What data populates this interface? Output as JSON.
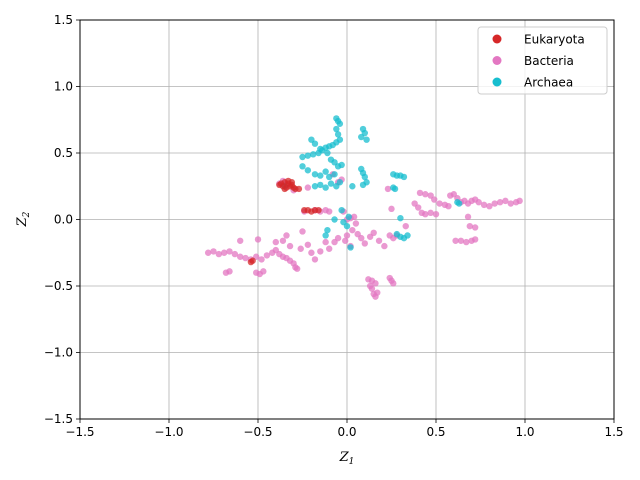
{
  "chart_data": {
    "type": "scatter",
    "title": "",
    "xlabel": "Z",
    "xlabel_sub": "1",
    "ylabel": "Z",
    "ylabel_sub": "2",
    "xlim": [
      -1.5,
      1.5
    ],
    "ylim": [
      -1.5,
      1.5
    ],
    "xticks": [
      -1.5,
      -1.0,
      -0.5,
      0.0,
      0.5,
      1.0,
      1.5
    ],
    "yticks": [
      -1.5,
      -1.0,
      -0.5,
      0.0,
      0.5,
      1.0,
      1.5
    ],
    "xtick_labels": [
      "−1.5",
      "−1.0",
      "−0.5",
      "0.0",
      "0.5",
      "1.0",
      "1.5"
    ],
    "ytick_labels": [
      "−1.5",
      "−1.0",
      "−0.5",
      "0.0",
      "0.5",
      "1.0",
      "1.5"
    ],
    "grid": true,
    "legend_position": "top-right",
    "series": [
      {
        "name": "Eukaryota",
        "color": "#d62728",
        "points": [
          [
            -0.37,
            0.27
          ],
          [
            -0.35,
            0.28
          ],
          [
            -0.33,
            0.27
          ],
          [
            -0.31,
            0.26
          ],
          [
            -0.36,
            0.25
          ],
          [
            -0.34,
            0.24
          ],
          [
            -0.32,
            0.25
          ],
          [
            -0.3,
            0.24
          ],
          [
            -0.38,
            0.26
          ],
          [
            -0.33,
            0.29
          ],
          [
            -0.29,
            0.23
          ],
          [
            -0.35,
            0.23
          ],
          [
            -0.31,
            0.28
          ],
          [
            -0.27,
            0.23
          ],
          [
            -0.24,
            0.07
          ],
          [
            -0.22,
            0.07
          ],
          [
            -0.2,
            0.06
          ],
          [
            -0.18,
            0.07
          ],
          [
            -0.16,
            0.07
          ],
          [
            -0.54,
            -0.32
          ],
          [
            -0.53,
            -0.31
          ]
        ]
      },
      {
        "name": "Bacteria",
        "color": "#e377c2",
        "points": [
          [
            -0.78,
            -0.25
          ],
          [
            -0.75,
            -0.24
          ],
          [
            -0.72,
            -0.26
          ],
          [
            -0.69,
            -0.25
          ],
          [
            -0.66,
            -0.24
          ],
          [
            -0.63,
            -0.26
          ],
          [
            -0.6,
            -0.28
          ],
          [
            -0.57,
            -0.29
          ],
          [
            -0.54,
            -0.3
          ],
          [
            -0.51,
            -0.28
          ],
          [
            -0.68,
            -0.4
          ],
          [
            -0.66,
            -0.39
          ],
          [
            -0.6,
            -0.16
          ],
          [
            -0.51,
            -0.4
          ],
          [
            -0.49,
            -0.41
          ],
          [
            -0.47,
            -0.39
          ],
          [
            -0.48,
            -0.3
          ],
          [
            -0.45,
            -0.27
          ],
          [
            -0.42,
            -0.25
          ],
          [
            -0.4,
            -0.23
          ],
          [
            -0.38,
            -0.26
          ],
          [
            -0.36,
            -0.28
          ],
          [
            -0.34,
            -0.29
          ],
          [
            -0.32,
            -0.31
          ],
          [
            -0.3,
            -0.33
          ],
          [
            -0.29,
            -0.36
          ],
          [
            -0.28,
            -0.37
          ],
          [
            -0.4,
            -0.17
          ],
          [
            -0.36,
            -0.16
          ],
          [
            -0.34,
            -0.12
          ],
          [
            -0.32,
            -0.2
          ],
          [
            -0.26,
            -0.22
          ],
          [
            -0.22,
            -0.19
          ],
          [
            -0.2,
            -0.25
          ],
          [
            -0.18,
            -0.3
          ],
          [
            -0.15,
            -0.24
          ],
          [
            -0.12,
            -0.17
          ],
          [
            -0.1,
            -0.22
          ],
          [
            -0.07,
            -0.17
          ],
          [
            -0.05,
            -0.14
          ],
          [
            -0.5,
            -0.15
          ],
          [
            -0.25,
            -0.09
          ],
          [
            -0.38,
            0.27
          ],
          [
            -0.36,
            0.29
          ],
          [
            -0.34,
            0.26
          ],
          [
            -0.3,
            0.22
          ],
          [
            -0.22,
            0.24
          ],
          [
            -0.18,
            0.07
          ],
          [
            -0.15,
            0.06
          ],
          [
            -0.12,
            0.07
          ],
          [
            -0.1,
            0.06
          ],
          [
            -0.24,
            0.06
          ],
          [
            -0.02,
            0.06
          ],
          [
            -0.08,
            0.34
          ],
          [
            -0.05,
            0.28
          ],
          [
            -0.03,
            0.3
          ],
          [
            0.0,
            0.0
          ],
          [
            0.02,
            0.01
          ],
          [
            0.04,
            0.02
          ],
          [
            0.05,
            -0.03
          ],
          [
            0.03,
            -0.08
          ],
          [
            0.06,
            -0.11
          ],
          [
            0.08,
            -0.14
          ],
          [
            0.0,
            -0.12
          ],
          [
            -0.01,
            -0.16
          ],
          [
            0.02,
            -0.2
          ],
          [
            0.1,
            -0.18
          ],
          [
            0.13,
            -0.13
          ],
          [
            0.15,
            -0.1
          ],
          [
            0.18,
            -0.16
          ],
          [
            0.21,
            -0.2
          ],
          [
            0.12,
            -0.45
          ],
          [
            0.14,
            -0.46
          ],
          [
            0.16,
            -0.48
          ],
          [
            0.14,
            -0.52
          ],
          [
            0.15,
            -0.56
          ],
          [
            0.16,
            -0.58
          ],
          [
            0.17,
            -0.55
          ],
          [
            0.13,
            -0.5
          ],
          [
            0.24,
            -0.44
          ],
          [
            0.25,
            -0.46
          ],
          [
            0.26,
            -0.48
          ],
          [
            0.24,
            -0.12
          ],
          [
            0.26,
            -0.14
          ],
          [
            0.28,
            -0.12
          ],
          [
            0.25,
            0.08
          ],
          [
            0.23,
            0.23
          ],
          [
            0.38,
            0.12
          ],
          [
            0.4,
            0.09
          ],
          [
            0.42,
            0.05
          ],
          [
            0.44,
            0.04
          ],
          [
            0.47,
            0.05
          ],
          [
            0.5,
            0.04
          ],
          [
            0.41,
            0.2
          ],
          [
            0.44,
            0.19
          ],
          [
            0.47,
            0.18
          ],
          [
            0.49,
            0.15
          ],
          [
            0.52,
            0.12
          ],
          [
            0.55,
            0.11
          ],
          [
            0.58,
            0.18
          ],
          [
            0.6,
            0.19
          ],
          [
            0.62,
            0.16
          ],
          [
            0.64,
            0.13
          ],
          [
            0.66,
            0.14
          ],
          [
            0.68,
            0.12
          ],
          [
            0.7,
            0.14
          ],
          [
            0.72,
            0.15
          ],
          [
            0.74,
            0.13
          ],
          [
            0.77,
            0.11
          ],
          [
            0.8,
            0.1
          ],
          [
            0.83,
            0.12
          ],
          [
            0.86,
            0.13
          ],
          [
            0.89,
            0.14
          ],
          [
            0.92,
            0.12
          ],
          [
            0.95,
            0.13
          ],
          [
            0.97,
            0.14
          ],
          [
            0.61,
            -0.16
          ],
          [
            0.64,
            -0.16
          ],
          [
            0.67,
            -0.17
          ],
          [
            0.7,
            -0.16
          ],
          [
            0.72,
            -0.15
          ],
          [
            0.69,
            -0.05
          ],
          [
            0.72,
            -0.06
          ],
          [
            0.68,
            0.02
          ],
          [
            0.57,
            0.1
          ],
          [
            0.33,
            -0.05
          ]
        ]
      },
      {
        "name": "Archaea",
        "color": "#17becf",
        "points": [
          [
            -0.06,
            0.76
          ],
          [
            -0.05,
            0.74
          ],
          [
            -0.04,
            0.72
          ],
          [
            -0.06,
            0.68
          ],
          [
            -0.05,
            0.64
          ],
          [
            -0.04,
            0.6
          ],
          [
            -0.06,
            0.58
          ],
          [
            -0.08,
            0.56
          ],
          [
            -0.1,
            0.55
          ],
          [
            -0.12,
            0.54
          ],
          [
            -0.14,
            0.52
          ],
          [
            -0.16,
            0.5
          ],
          [
            -0.19,
            0.49
          ],
          [
            -0.22,
            0.48
          ],
          [
            -0.25,
            0.47
          ],
          [
            -0.2,
            0.6
          ],
          [
            -0.18,
            0.57
          ],
          [
            -0.15,
            0.53
          ],
          [
            -0.11,
            0.5
          ],
          [
            -0.09,
            0.45
          ],
          [
            -0.07,
            0.43
          ],
          [
            -0.05,
            0.4
          ],
          [
            -0.03,
            0.41
          ],
          [
            -0.25,
            0.4
          ],
          [
            -0.22,
            0.37
          ],
          [
            -0.18,
            0.34
          ],
          [
            -0.15,
            0.33
          ],
          [
            -0.12,
            0.36
          ],
          [
            -0.1,
            0.32
          ],
          [
            -0.07,
            0.34
          ],
          [
            -0.04,
            0.28
          ],
          [
            -0.06,
            0.25
          ],
          [
            -0.09,
            0.27
          ],
          [
            -0.12,
            0.24
          ],
          [
            -0.15,
            0.26
          ],
          [
            -0.18,
            0.25
          ],
          [
            0.09,
            0.68
          ],
          [
            0.1,
            0.65
          ],
          [
            0.08,
            0.62
          ],
          [
            0.11,
            0.6
          ],
          [
            0.09,
            0.35
          ],
          [
            0.1,
            0.32
          ],
          [
            0.08,
            0.38
          ],
          [
            0.11,
            0.28
          ],
          [
            0.09,
            0.26
          ],
          [
            0.26,
            0.34
          ],
          [
            0.28,
            0.33
          ],
          [
            0.3,
            0.33
          ],
          [
            0.32,
            0.32
          ],
          [
            0.26,
            0.24
          ],
          [
            0.27,
            0.23
          ],
          [
            0.28,
            -0.11
          ],
          [
            0.3,
            -0.13
          ],
          [
            0.32,
            -0.14
          ],
          [
            0.34,
            -0.12
          ],
          [
            -0.03,
            0.07
          ],
          [
            -0.02,
            -0.02
          ],
          [
            0.0,
            -0.05
          ],
          [
            0.01,
            0.02
          ],
          [
            -0.11,
            -0.08
          ],
          [
            -0.12,
            -0.12
          ],
          [
            0.03,
            0.25
          ],
          [
            0.62,
            0.13
          ],
          [
            0.63,
            0.12
          ],
          [
            0.3,
            0.01
          ],
          [
            -0.07,
            0.0
          ],
          [
            0.02,
            -0.21
          ],
          [
            -0.35,
            0.25
          ]
        ]
      }
    ]
  }
}
